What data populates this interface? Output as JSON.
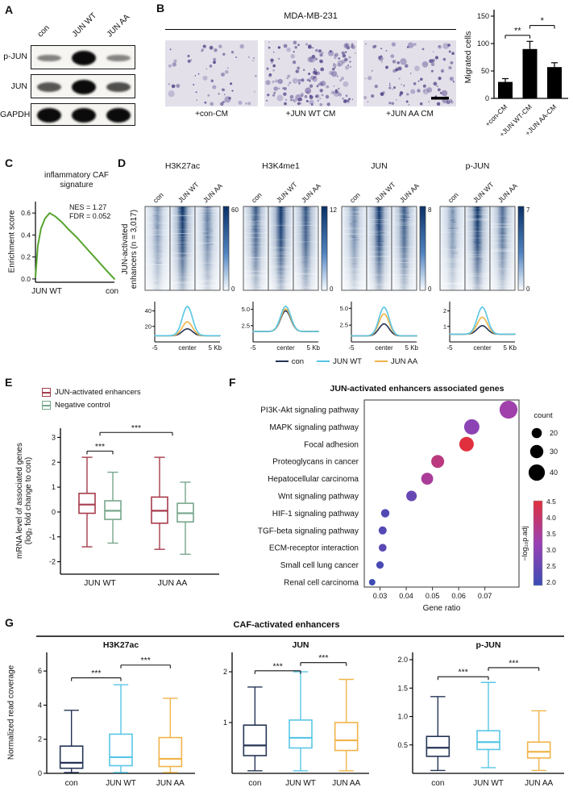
{
  "colors": {
    "series": {
      "con": "#253456",
      "jun_wt": "#58c6e6",
      "jun_aa": "#f0b44a"
    },
    "enhancer_red": "#a73b4c",
    "control_green": "#78a78c",
    "gsea_green": "#55a42e",
    "heat_high": "#0a3168"
  },
  "panel_a": {
    "label": "A",
    "lanes": [
      "con",
      "JUN WT",
      "JUN AA"
    ],
    "rows": [
      {
        "name": "p-JUN",
        "intensities": [
          0.22,
          1.0,
          0.2
        ]
      },
      {
        "name": "JUN",
        "intensities": [
          0.5,
          1.0,
          0.55
        ]
      },
      {
        "name": "GAPDH",
        "intensities": [
          1.0,
          1.0,
          1.0
        ]
      }
    ]
  },
  "panel_b": {
    "label": "B",
    "title": "MDA-MB-231",
    "images": [
      {
        "label": "+con-CM",
        "density": 50
      },
      {
        "label": "+JUN WT CM",
        "density": 150
      },
      {
        "label": "+JUN AA CM",
        "density": 85
      }
    ],
    "bar_chart": {
      "type": "bar",
      "ylabel": "Migrated cells",
      "ylim": [
        0,
        150
      ],
      "yticks": [
        "0",
        "50",
        "100",
        "150"
      ],
      "ytick_vals": [
        0,
        50,
        100,
        150
      ],
      "categories": [
        "+con-CM",
        "+JUN WT-CM",
        "+JUN AA-CM"
      ],
      "values": [
        30,
        90,
        57
      ],
      "errors": [
        6,
        14,
        8
      ],
      "significance": [
        {
          "a": 0,
          "b": 1,
          "label": "**",
          "v": 115
        },
        {
          "a": 1,
          "b": 2,
          "label": "*",
          "v": 133
        }
      ]
    }
  },
  "panel_c": {
    "label": "C",
    "title_line1": "inflammatory CAF",
    "title_line2": "signature",
    "nes": "NES = 1.27",
    "fdr": "FDR = 0.052",
    "ylabel": "Enrichment score",
    "yticks": [
      "0.0",
      "0.2",
      "0.4",
      "0.6"
    ],
    "ytick_vals": [
      0.0,
      0.2,
      0.4,
      0.6
    ],
    "x_left": "JUN WT",
    "x_right": "con",
    "type": "line",
    "curve_x": [
      0,
      0.03,
      0.07,
      0.12,
      0.18,
      0.25,
      0.33,
      0.42,
      0.52,
      0.62,
      0.72,
      0.82,
      0.92,
      1.0
    ],
    "curve_y": [
      0.02,
      0.3,
      0.46,
      0.55,
      0.6,
      0.57,
      0.52,
      0.45,
      0.38,
      0.3,
      0.22,
      0.14,
      0.06,
      0.0
    ]
  },
  "panel_d": {
    "label": "D",
    "ylabel_line1": "JUN-activated",
    "ylabel_line2": "enhancers (n = 3,017)",
    "col_labels": [
      "con",
      "JUN WT",
      "JUN AA"
    ],
    "legend": [
      "con",
      "JUN WT",
      "JUN AA"
    ],
    "x_left": "-5",
    "x_center": "center",
    "x_right": "5 Kb",
    "groups": [
      {
        "title": "H3K27ac",
        "cbar_max": "60",
        "cbar_min": "0",
        "lane_strength": [
          0.5,
          1.0,
          0.62
        ],
        "profile": {
          "ymax": 52,
          "ticks": [
            "40",
            "20"
          ],
          "tick_vals": [
            40,
            20
          ],
          "baseline": 8,
          "peaks": {
            "con": 17,
            "jun_wt": 46,
            "jun_aa": 26
          }
        }
      },
      {
        "title": "H3K4me1",
        "cbar_max": "12",
        "cbar_min": "0",
        "lane_strength": [
          0.8,
          1.0,
          0.85
        ],
        "profile": {
          "ymax": 6.2,
          "ticks": [
            "5.0",
            "2.5"
          ],
          "tick_vals": [
            5.0,
            2.5
          ],
          "baseline": 1.6,
          "peaks": {
            "con": 4.8,
            "jun_wt": 5.5,
            "jun_aa": 5.1
          }
        }
      },
      {
        "title": "JUN",
        "cbar_max": "8",
        "cbar_min": "0",
        "lane_strength": [
          0.55,
          1.0,
          0.8
        ],
        "profile": {
          "ymax": 6.0,
          "ticks": [
            "5.0",
            "2.5"
          ],
          "tick_vals": [
            5.0,
            2.5
          ],
          "baseline": 0.9,
          "peaks": {
            "con": 2.7,
            "jun_wt": 5.2,
            "jun_aa": 4.2
          }
        }
      },
      {
        "title": "p-JUN",
        "cbar_max": "7",
        "cbar_min": "0",
        "lane_strength": [
          0.5,
          1.0,
          0.7
        ],
        "profile": {
          "ymax": 2.6,
          "ticks": [
            "2",
            "1"
          ],
          "tick_vals": [
            2,
            1
          ],
          "baseline": 0.5,
          "peaks": {
            "con": 1.05,
            "jun_wt": 2.25,
            "jun_aa": 1.6
          }
        }
      }
    ]
  },
  "panel_e": {
    "label": "E",
    "legend": [
      {
        "label": "JUN-activated enhancers"
      },
      {
        "label": "Negative control"
      }
    ],
    "ylabel_line1": "mRNA level of associated genes",
    "ylabel_line2": "(log₂ fold change to con)",
    "type": "boxplot",
    "ylim": [
      -2.5,
      3.5
    ],
    "yticks": [
      "-2",
      "-1",
      "0",
      "1",
      "2",
      "3"
    ],
    "ytick_vals": [
      -2,
      -1,
      0,
      1,
      2,
      3
    ],
    "groups": [
      "JUN WT",
      "JUN AA"
    ],
    "boxes": [
      {
        "lo": -1.4,
        "q1": -0.05,
        "med": 0.3,
        "q3": 0.75,
        "hi": 2.2
      },
      {
        "lo": -1.25,
        "q1": -0.3,
        "med": 0.05,
        "q3": 0.45,
        "hi": 1.6
      },
      {
        "lo": -1.5,
        "q1": -0.45,
        "med": 0.05,
        "q3": 0.6,
        "hi": 2.2
      },
      {
        "lo": -1.7,
        "q1": -0.4,
        "med": -0.05,
        "q3": 0.35,
        "hi": 1.2
      }
    ],
    "significance": [
      {
        "type": "pair",
        "group": 0,
        "v": 2.45,
        "label": "***"
      },
      {
        "type": "span",
        "v": 3.2,
        "label": "***"
      }
    ]
  },
  "panel_f": {
    "label": "F",
    "title": "JUN-activated enhancers associated genes",
    "xlabel": "Gene ratio",
    "type": "scatter",
    "xlim": [
      0.024,
      0.083
    ],
    "xticks": [
      "0.03",
      "0.04",
      "0.05",
      "0.06",
      "0.07"
    ],
    "xtick_vals": [
      0.03,
      0.04,
      0.05,
      0.06,
      0.07
    ],
    "pathways": [
      {
        "name": "PI3K-Akt signaling pathway",
        "ratio": 0.079,
        "count": 45,
        "neglogp": 3.4
      },
      {
        "name": "MAPK signaling pathway",
        "ratio": 0.065,
        "count": 37,
        "neglogp": 3.1
      },
      {
        "name": "Focal adhesion",
        "ratio": 0.063,
        "count": 34,
        "neglogp": 4.6
      },
      {
        "name": "Proteoglycans in cancer",
        "ratio": 0.052,
        "count": 29,
        "neglogp": 3.9
      },
      {
        "name": "Hepatocellular carcinoma",
        "ratio": 0.048,
        "count": 26,
        "neglogp": 3.6
      },
      {
        "name": "Wnt signaling pathway",
        "ratio": 0.042,
        "count": 21,
        "neglogp": 2.6
      },
      {
        "name": "HIF-1 signaling pathway",
        "ratio": 0.032,
        "count": 14,
        "neglogp": 2.3
      },
      {
        "name": "TGF-beta signaling pathway",
        "ratio": 0.031,
        "count": 13,
        "neglogp": 2.3
      },
      {
        "name": "ECM-receptor interaction",
        "ratio": 0.031,
        "count": 12,
        "neglogp": 2.4
      },
      {
        "name": "Small cell lung cancer",
        "ratio": 0.03,
        "count": 11,
        "neglogp": 2.2
      },
      {
        "name": "Renal cell carcinoma",
        "ratio": 0.027,
        "count": 8,
        "neglogp": 2.0
      }
    ],
    "count_legend": {
      "title": "count",
      "values": [
        20,
        30,
        40
      ]
    },
    "color_legend": {
      "title": "−log₁₀p.adj",
      "ticks": [
        "4.5",
        "4.0",
        "3.5",
        "3.0",
        "2.5",
        "2.0"
      ],
      "high": "#e0303e",
      "mid": "#9a41b4",
      "low": "#3c4cb4"
    }
  },
  "panel_g": {
    "label": "G",
    "title": "CAF-activated enhancers",
    "ylabel": "Normalized read coverage",
    "type": "boxplot",
    "categories": [
      "con",
      "JUN WT",
      "JUN AA"
    ],
    "subplots": [
      {
        "title": "H3K27ac",
        "ymax": 7.0,
        "yticks": [
          "0",
          "2",
          "4",
          "6"
        ],
        "ytick_vals": [
          0,
          2,
          4,
          6
        ],
        "boxes": [
          {
            "lo": 0.05,
            "q1": 0.3,
            "med": 0.62,
            "q3": 1.6,
            "hi": 3.7
          },
          {
            "lo": 0.05,
            "q1": 0.45,
            "med": 0.95,
            "q3": 2.3,
            "hi": 5.2
          },
          {
            "lo": 0.05,
            "q1": 0.4,
            "med": 0.85,
            "q3": 2.1,
            "hi": 4.4
          }
        ],
        "sig": [
          {
            "a": 0,
            "b": 1,
            "v": 5.6,
            "label": "***"
          },
          {
            "a": 1,
            "b": 2,
            "v": 6.35,
            "label": "***"
          }
        ]
      },
      {
        "title": "JUN",
        "ymax": 2.35,
        "yticks": [
          "1",
          "2"
        ],
        "ytick_vals": [
          1,
          2
        ],
        "boxes": [
          {
            "lo": 0.05,
            "q1": 0.35,
            "med": 0.55,
            "q3": 0.95,
            "hi": 1.7
          },
          {
            "lo": 0.05,
            "q1": 0.5,
            "med": 0.7,
            "q3": 1.05,
            "hi": 2.0
          },
          {
            "lo": 0.05,
            "q1": 0.45,
            "med": 0.65,
            "q3": 1.0,
            "hi": 1.85
          }
        ],
        "sig": [
          {
            "a": 0,
            "b": 1,
            "v": 2.02,
            "label": "***"
          },
          {
            "a": 1,
            "b": 2,
            "v": 2.18,
            "label": "***"
          }
        ]
      },
      {
        "title": "p-JUN",
        "ymax": 2.1,
        "yticks": [
          "0.5",
          "1.0",
          "1.5",
          "2.0"
        ],
        "ytick_vals": [
          0.5,
          1.0,
          1.5,
          2.0
        ],
        "boxes": [
          {
            "lo": 0.05,
            "q1": 0.3,
            "med": 0.45,
            "q3": 0.65,
            "hi": 1.35
          },
          {
            "lo": 0.1,
            "q1": 0.42,
            "med": 0.55,
            "q3": 0.75,
            "hi": 1.6
          },
          {
            "lo": 0.05,
            "q1": 0.27,
            "med": 0.38,
            "q3": 0.55,
            "hi": 1.1
          }
        ],
        "sig": [
          {
            "a": 0,
            "b": 1,
            "v": 1.7,
            "label": "***"
          },
          {
            "a": 1,
            "b": 2,
            "v": 1.86,
            "label": "***"
          }
        ]
      }
    ]
  }
}
